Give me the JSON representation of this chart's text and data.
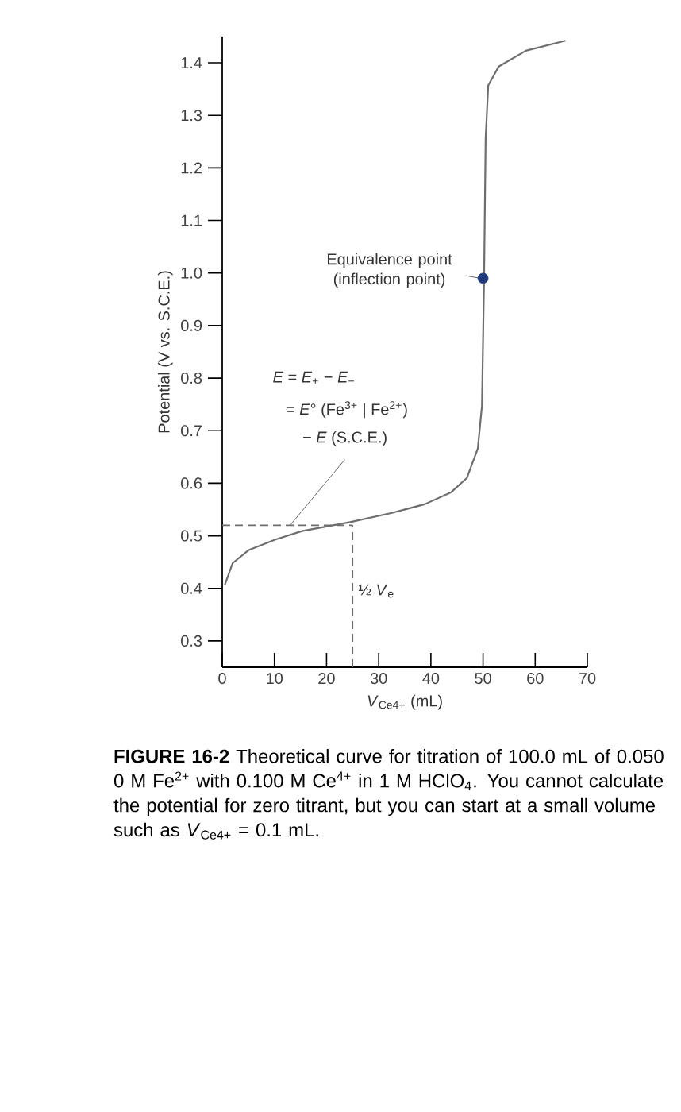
{
  "chart_data": {
    "type": "line",
    "xlabel": "*V*$_{Ce4+}$ (mL)",
    "ylabel": "Potential (V vs. S.C.E.)",
    "xlim": [
      0,
      70
    ],
    "xticks": [
      0,
      10,
      20,
      30,
      40,
      50,
      60,
      70
    ],
    "ylim": [
      0.25,
      1.45
    ],
    "yticks": [
      0.3,
      0.4,
      0.5,
      0.6,
      0.7,
      0.8,
      0.9,
      {
        "value": 1,
        "label": "1.0"
      },
      1.1,
      1.2,
      1.3,
      1.4
    ],
    "series": [
      {
        "color": "#6e6e6e",
        "x": [
          0.5,
          2,
          5.1,
          10.2,
          15.3,
          24.5,
          32.7,
          38.8,
          43.9,
          46.9,
          49,
          49.8,
          50.2,
          50.5,
          51,
          53,
          58.2,
          65.8
        ],
        "values": [
          0.407,
          0.448,
          0.473,
          0.493,
          0.509,
          0.526,
          0.544,
          0.56,
          0.583,
          0.61,
          0.666,
          0.748,
          0.99,
          1.256,
          1.357,
          1.393,
          1.423,
          1.442
        ]
      },
      {
        "type": "scatter",
        "color": "#1f3a7a",
        "x": [
          50
        ],
        "values": [
          0.99
        ]
      }
    ],
    "ref_lines": [
      {
        "axis": "y",
        "value": 0.52,
        "color": "#6e6e6e",
        "line_style": "dashed"
      },
      {
        "axis": "x",
        "value": 25,
        "label": "½ *V*$_{e}$",
        "color": "#6e6e6e",
        "line_style": "dashed"
      }
    ],
    "annotations": [
      {
        "text": "Equivalence point (inflection point)",
        "x": 50,
        "y": 0.99
      },
      "*E* = *E*$_{+}$ − *E*$_{−}$",
      "= *E*° (Fe$^{3+}$ | Fe$^{2+}$)",
      {
        "text": "− *E* (S.C.E.)",
        "x": 13,
        "y": 0.52
      },
      "**FIGURE 16-2** Theoretical curve for titration of 100.0 mL of 0.050 0 M Fe$^{2+}$ with 0.100 M Ce$^{4+}$ in 1 M HClO$_{4}$. You cannot calculate the potential for zero titrant, but you can start at a small volume such as *V*$_{Ce4+}$ = 0.1 mL."
    ]
  }
}
